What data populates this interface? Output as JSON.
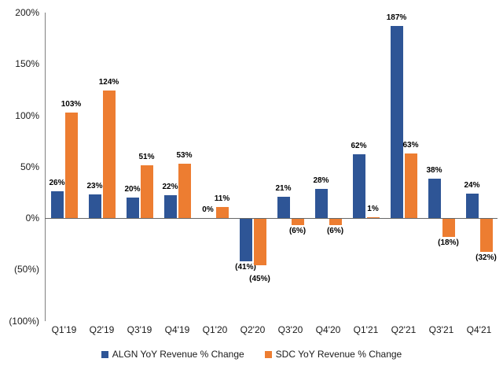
{
  "chart_data": {
    "type": "bar",
    "title": "",
    "categories": [
      "Q1'19",
      "Q2'19",
      "Q3'19",
      "Q4'19",
      "Q1'20",
      "Q2'20",
      "Q3'20",
      "Q4'20",
      "Q1'21",
      "Q2'21",
      "Q3'21",
      "Q4'21"
    ],
    "series": [
      {
        "name": "ALGN YoY Revenue % Change",
        "color": "#2E5596",
        "values": [
          26,
          23,
          20,
          22,
          0,
          -41,
          21,
          28,
          62,
          187,
          38,
          24
        ]
      },
      {
        "name": "SDC YoY Revenue % Change",
        "color": "#ED7D31",
        "values": [
          103,
          124,
          51,
          53,
          11,
          -45,
          -6,
          -6,
          1,
          63,
          -18,
          -32
        ]
      }
    ],
    "data_labels": {
      "series_0": [
        "26%",
        "23%",
        "20%",
        "22%",
        "0%",
        "(41%)",
        "21%",
        "28%",
        "62%",
        "187%",
        "38%",
        "24%"
      ],
      "series_1": [
        "103%",
        "124%",
        "51%",
        "53%",
        "11%",
        "(45%)",
        "(6%)",
        "(6%)",
        "1%",
        "63%",
        "(18%)",
        "(32%)"
      ]
    },
    "xlabel": "",
    "ylabel": "",
    "ylim": [
      -100,
      200
    ],
    "y_ticks": [
      200,
      150,
      100,
      50,
      0,
      -50,
      -100
    ],
    "y_tick_labels": [
      "200%",
      "150%",
      "100%",
      "50%",
      "0%",
      "(50%)",
      "(100%)"
    ],
    "value_format": "negatives_in_parentheses",
    "grid": false,
    "legend_position": "bottom"
  }
}
